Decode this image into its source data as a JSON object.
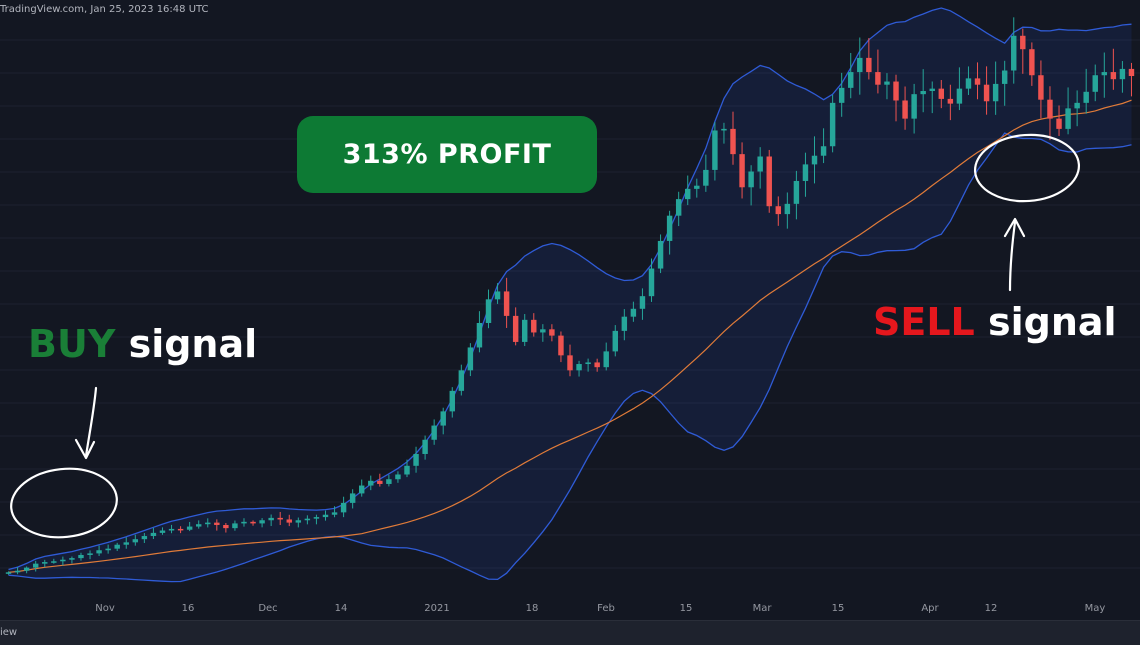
{
  "header": {
    "text": "TradingView.com, Jan 25, 2023 16:48 UTC"
  },
  "footer": {
    "text": "iew"
  },
  "badge": {
    "text": "313% PROFIT",
    "color": "#0d7a34"
  },
  "annotations": {
    "buy": {
      "word": "BUY",
      "rest": "signal",
      "color": "#1a7f37"
    },
    "sell": {
      "word": "SELL",
      "rest": "signal",
      "color": "#e5171d"
    }
  },
  "chart_data": {
    "type": "candlestick",
    "x_ticks": [
      "Nov",
      "16",
      "Dec",
      "14",
      "2021",
      "18",
      "Feb",
      "15",
      "Mar",
      "15",
      "Apr",
      "12",
      "May"
    ],
    "up_color": "#26a69a",
    "down_color": "#ef5350",
    "band_color": "#2f5bd6",
    "ma_color": "#e07b39",
    "candles_close": [
      12.0,
      12.2,
      12.6,
      13.1,
      13.3,
      13.4,
      13.6,
      13.8,
      14.2,
      14.4,
      14.8,
      15.0,
      15.5,
      15.8,
      16.2,
      16.6,
      17.0,
      17.3,
      17.5,
      17.4,
      17.8,
      18.1,
      18.3,
      18.0,
      17.6,
      18.2,
      18.4,
      18.2,
      18.6,
      18.9,
      18.7,
      18.3,
      18.6,
      18.8,
      19.0,
      19.3,
      19.6,
      20.8,
      22.0,
      23.0,
      23.6,
      23.2,
      23.8,
      24.4,
      25.5,
      27.0,
      28.8,
      30.6,
      32.4,
      35.0,
      37.6,
      40.5,
      43.6,
      46.6,
      47.6,
      44.5,
      41.2,
      44.0,
      42.4,
      42.8,
      42.0,
      39.5,
      37.6,
      38.4,
      38.6,
      38.0,
      40.0,
      42.6,
      44.4,
      45.4,
      47.0,
      50.5,
      54.0,
      57.2,
      59.3,
      60.6,
      61.0,
      63.0,
      68.0,
      68.2,
      65.0,
      60.8,
      62.8,
      64.7,
      58.4,
      57.4,
      58.7,
      61.6,
      63.7,
      64.8,
      66.0,
      71.5,
      73.4,
      75.4,
      77.2,
      75.4,
      73.8,
      74.2,
      71.8,
      69.5,
      72.6,
      73.0,
      73.3,
      72.0,
      71.4,
      73.3,
      74.6,
      73.8,
      71.7,
      73.9,
      75.6,
      80.0,
      78.3,
      75.0,
      71.9,
      69.5,
      68.2,
      70.8,
      71.5,
      72.9,
      75.0,
      75.4,
      74.5,
      75.8,
      74.9
    ],
    "annotation_texts": [
      "313% PROFIT",
      "BUY signal",
      "SELL signal"
    ]
  }
}
